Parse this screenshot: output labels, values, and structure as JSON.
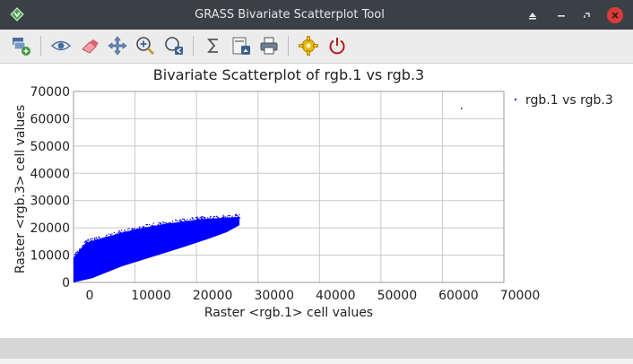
{
  "window": {
    "title": "GRASS Bivariate Scatterplot Tool"
  },
  "toolbar": {
    "buttons": [
      {
        "name": "add-map-button",
        "icon": "layer-add-icon"
      },
      {
        "name": "view-button",
        "icon": "eye-icon"
      },
      {
        "name": "erase-button",
        "icon": "eraser-icon"
      },
      {
        "name": "pan-button",
        "icon": "pan-icon"
      },
      {
        "name": "zoom-button",
        "icon": "zoom-in-icon"
      },
      {
        "name": "zoom-back-button",
        "icon": "zoom-back-icon"
      },
      {
        "name": "statistics-button",
        "icon": "sigma-icon"
      },
      {
        "name": "save-image-button",
        "icon": "save-image-icon"
      },
      {
        "name": "print-button",
        "icon": "printer-icon"
      },
      {
        "name": "settings-button",
        "icon": "gear-icon"
      },
      {
        "name": "quit-button",
        "icon": "power-icon"
      }
    ]
  },
  "colors": {
    "titlebar": "#3a4045",
    "close_button": "#dd3b3b",
    "points": "#0000ff",
    "grid": "#c8c8c8"
  },
  "chart_data": {
    "type": "scatter",
    "title": "Bivariate Scatterplot of rgb.1 vs rgb.3",
    "xlabel": "Raster <rgb.1> cell values",
    "ylabel": "Raster <rgb.3> cell values",
    "xlim": [
      0,
      70000
    ],
    "ylim": [
      0,
      70000
    ],
    "xticks": [
      "0",
      "10000",
      "20000",
      "30000",
      "40000",
      "50000",
      "60000",
      "70000"
    ],
    "yticks": [
      "0",
      "10000",
      "20000",
      "30000",
      "40000",
      "50000",
      "60000",
      "70000"
    ],
    "grid": true,
    "legend_position": "right",
    "series": [
      {
        "name": "rgb.1 vs rgb.3",
        "color": "#0000ff",
        "cloud_upper_boundary": [
          [
            0,
            9000
          ],
          [
            2000,
            14500
          ],
          [
            5000,
            16500
          ],
          [
            10000,
            19500
          ],
          [
            15000,
            21500
          ],
          [
            20000,
            23000
          ],
          [
            23000,
            23500
          ],
          [
            27000,
            24000
          ]
        ],
        "cloud_lower_boundary": [
          [
            0,
            0
          ],
          [
            3000,
            1500
          ],
          [
            8000,
            6000
          ],
          [
            13000,
            9500
          ],
          [
            18000,
            13000
          ],
          [
            22000,
            16000
          ],
          [
            25000,
            18500
          ],
          [
            27000,
            21000
          ]
        ],
        "outliers": [
          [
            63000,
            64000
          ]
        ]
      }
    ]
  }
}
